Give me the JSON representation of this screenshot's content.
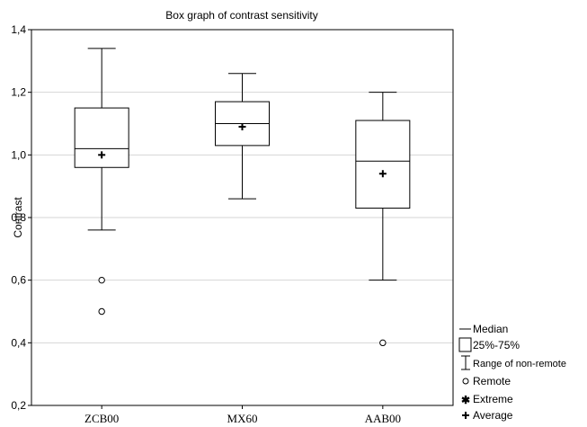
{
  "chart_data": {
    "type": "box",
    "title": "Box graph of contrast sensitivity",
    "xlabel": "",
    "ylabel": "Contrast",
    "ylim": [
      0.2,
      1.4
    ],
    "yticks": [
      "0,2",
      "0,4",
      "0,6",
      "0,8",
      "1,0",
      "1,2",
      "1,4"
    ],
    "ytick_values": [
      0.2,
      0.4,
      0.6,
      0.8,
      1.0,
      1.2,
      1.4
    ],
    "grid": true,
    "legend_position": "bottom-right",
    "categories": [
      "ZCB00",
      "MX60",
      "AAB00"
    ],
    "boxes": [
      {
        "category": "ZCB00",
        "whisker_low": 0.76,
        "q1": 0.96,
        "median": 1.02,
        "q3": 1.15,
        "whisker_high": 1.34,
        "average": 1.0,
        "remote": [
          0.6,
          0.5
        ],
        "extreme": []
      },
      {
        "category": "MX60",
        "whisker_low": 0.86,
        "q1": 1.03,
        "median": 1.1,
        "q3": 1.17,
        "whisker_high": 1.26,
        "average": 1.09,
        "remote": [],
        "extreme": []
      },
      {
        "category": "AAB00",
        "whisker_low": 0.6,
        "q1": 0.83,
        "median": 0.98,
        "q3": 1.11,
        "whisker_high": 1.2,
        "average": 0.94,
        "remote": [
          0.4
        ],
        "extreme": []
      }
    ],
    "legend": [
      {
        "key": "median",
        "label": "Median"
      },
      {
        "key": "box",
        "label": "25%-75%"
      },
      {
        "key": "range",
        "label": "Range of non-remote"
      },
      {
        "key": "remote",
        "label": "Remote"
      },
      {
        "key": "extreme",
        "label": "Extreme"
      },
      {
        "key": "average",
        "label": "Average"
      }
    ]
  }
}
